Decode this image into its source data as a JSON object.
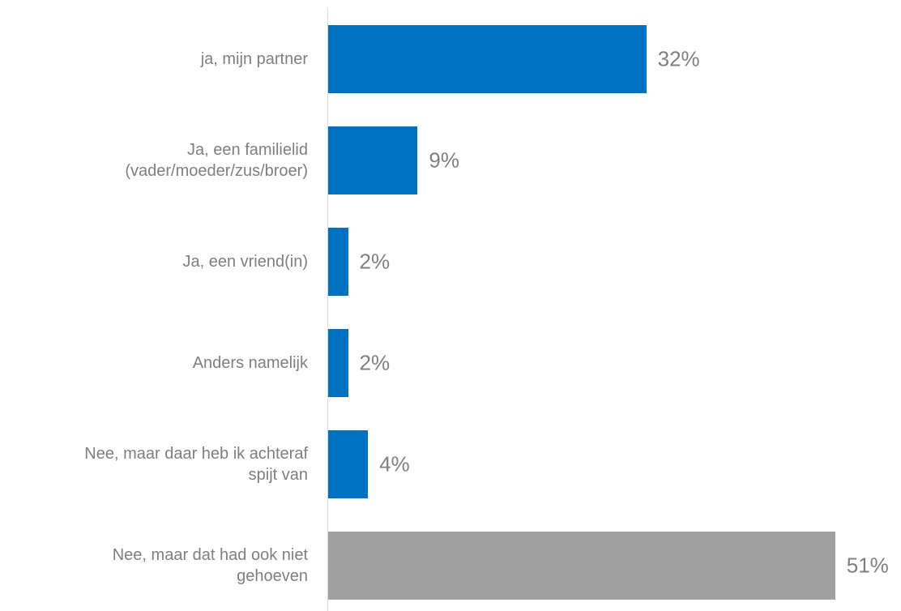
{
  "chart_data": {
    "type": "bar",
    "orientation": "horizontal",
    "categories": [
      "ja, mijn partner",
      "Ja, een familielid\n(vader/moeder/zus/broer)",
      "Ja, een vriend(in)",
      "Anders namelijk",
      "Nee, maar daar heb ik achteraf\nspijt van",
      "Nee, maar dat had ook niet\ngehoeven"
    ],
    "values": [
      32,
      9,
      2,
      2,
      4,
      51
    ],
    "value_labels": [
      "32%",
      "9%",
      "2%",
      "2%",
      "4%",
      "51%"
    ],
    "colors": [
      "#0070c0",
      "#0070c0",
      "#0070c0",
      "#0070c0",
      "#0070c0",
      "#a0a0a0"
    ]
  }
}
